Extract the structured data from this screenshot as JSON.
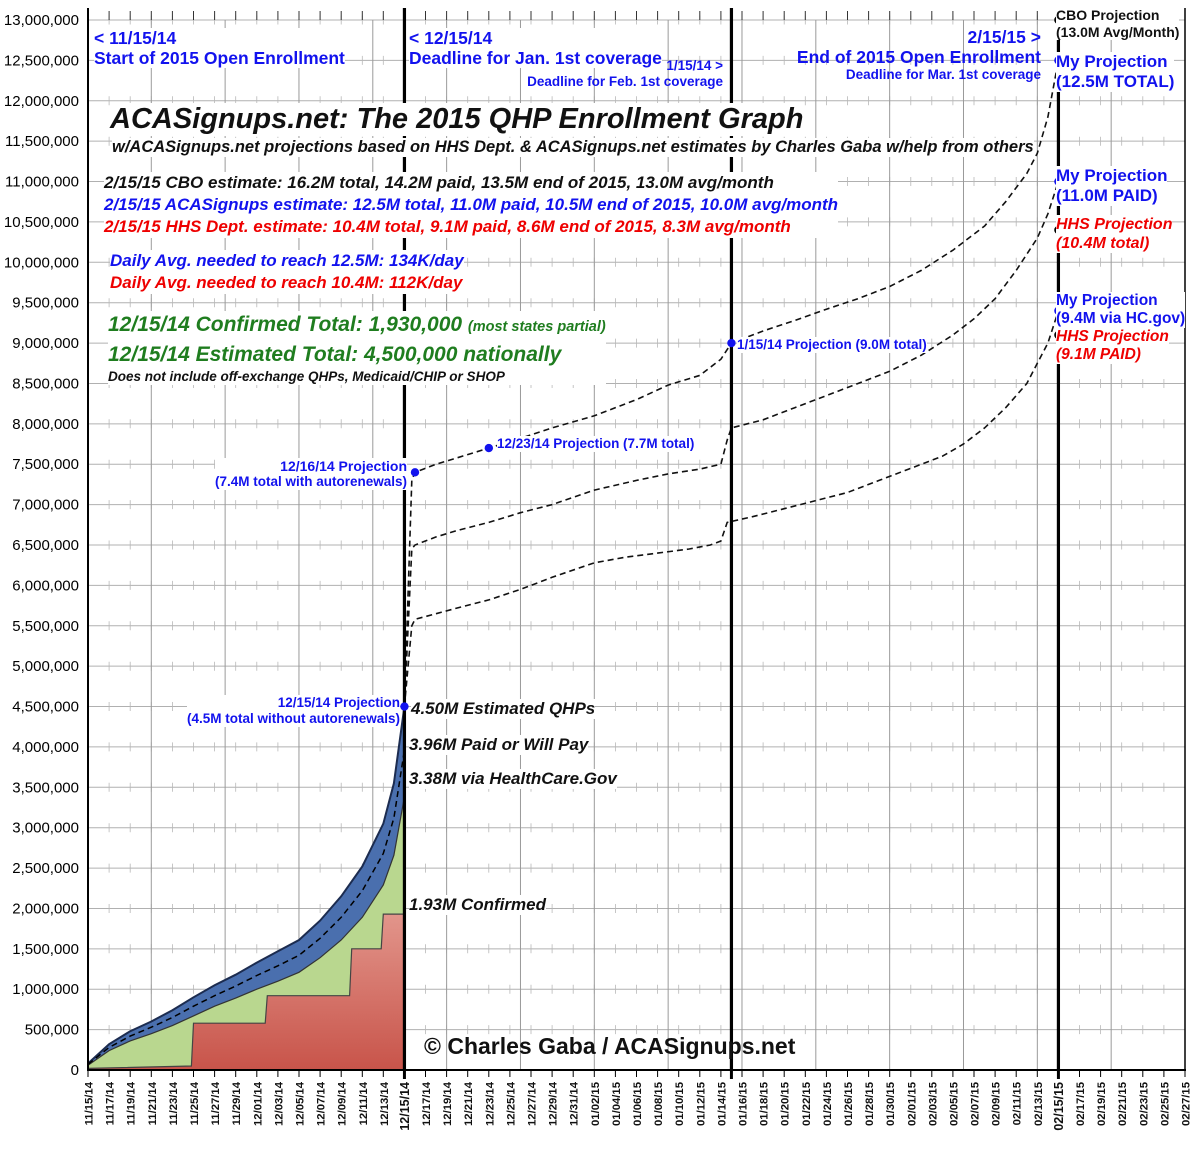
{
  "header": {
    "left": {
      "line1": "< 11/15/14",
      "line2": "Start of 2015 Open Enrollment"
    },
    "mid": {
      "line1": "< 12/15/14",
      "line2": "Deadline for Jan. 1st coverage"
    },
    "jan15": {
      "line1": "1/15/14 >",
      "line2": "Deadline for Feb. 1st coverage"
    },
    "right": {
      "line1": "2/15/15 >",
      "line2": "End of 2015 Open Enrollment",
      "line3": "Deadline for Mar. 1st coverage"
    }
  },
  "title": "ACASignups.net: The 2015 QHP Enrollment Graph",
  "subtitle": "w/ACASignups.net projections based on HHS Dept. & ACASignups.net estimates by Charles Gaba w/help from others",
  "estimates": {
    "cbo": "2/15/15 CBO estimate: 16.2M total, 14.2M paid, 13.5M end of 2015, 13.0M avg/month",
    "aca": "2/15/15 ACASignups estimate: 12.5M total, 11.0M paid, 10.5M end of 2015, 10.0M avg/month",
    "hhs": "2/15/15 HHS Dept. estimate: 10.4M total, 9.1M paid, 8.6M end of 2015, 8.3M avg/month"
  },
  "daily_avg": {
    "blue": "Daily Avg. needed to reach 12.5M: 134K/day",
    "red": "Daily Avg. needed to reach 10.4M: 112K/day"
  },
  "totals": {
    "confirmed": "12/15/14 Confirmed Total: 1,930,000",
    "confirmed_note": "(most states partial)",
    "estimated": "12/15/14 Estimated Total: 4,500,000 nationally",
    "disclaimer": "Does not include off-exchange QHPs, Medicaid/CHIP or SHOP"
  },
  "callouts": {
    "p1215": {
      "line1": "12/15/14 Projection",
      "line2": "(4.5M total without autorenewals)"
    },
    "p1216": {
      "line1": "12/16/14 Projection",
      "line2": "(7.4M total with autorenewals)"
    },
    "p1223": "12/23/14 Projection (7.7M total)",
    "p0115": "1/15/14 Projection (9.0M total)"
  },
  "area_labels": {
    "estimated": "4.50M Estimated QHPs",
    "paid": "3.96M Paid or Will Pay",
    "hcgov": "3.38M via HealthCare.Gov",
    "confirmed": "1.93M Confirmed"
  },
  "right_labels": [
    {
      "line1": "CBO Projection",
      "line2": "(13.0M Avg/Month)"
    },
    {
      "line1": "My Projection",
      "line2": "(12.5M TOTAL)"
    },
    {
      "line1": "My Projection",
      "line2": "(11.0M PAID)"
    },
    {
      "line1": "HHS Projection",
      "line2": "(10.4M total)"
    },
    {
      "line1": "My Projection",
      "line2": "(9.4M via HC.gov)"
    },
    {
      "line1": "HHS Projection",
      "line2": "(9.1M PAID)"
    }
  ],
  "copyright": "© Charles Gaba / ACASignups.net",
  "colors": {
    "blue_text": "#1212ee",
    "red_text": "#ee0000",
    "green_text": "#1f7d1f",
    "area_blue": "#4a6fae",
    "area_blue_edge": "#1c2c50",
    "area_green": "#b9d78f",
    "area_green_edge": "#333333",
    "area_red_top": "#e2958b",
    "area_red_bottom": "#c8544a",
    "area_red_edge": "#444444",
    "grid": "#b0b0b0",
    "grid_tick": "#b8b8b8",
    "weekly_grid": "#9a9a9a",
    "axis": "#000000",
    "proj_line": "#111111",
    "dot_blue": "#1212ee",
    "dot_black": "#000000"
  },
  "chart_data": {
    "type": "area",
    "title": "ACASignups.net: The 2015 QHP Enrollment Graph",
    "ylim": [
      0,
      13000000
    ],
    "y_tick_step": 500000,
    "x_tick_interval_days": 2,
    "x_tick_labels": [
      "11/15/14",
      "11/17/14",
      "11/19/14",
      "11/21/14",
      "11/23/14",
      "11/25/14",
      "11/27/14",
      "11/29/14",
      "12/01/14",
      "12/03/14",
      "12/05/14",
      "12/07/14",
      "12/09/14",
      "12/11/14",
      "12/13/14",
      "12/15/14",
      "12/17/14",
      "12/19/14",
      "12/21/14",
      "12/23/14",
      "12/25/14",
      "12/27/14",
      "12/29/14",
      "12/31/14",
      "01/02/15",
      "01/04/15",
      "01/06/15",
      "01/08/15",
      "01/10/15",
      "01/12/15",
      "01/14/15",
      "01/16/15",
      "01/18/15",
      "01/20/15",
      "01/22/15",
      "01/24/15",
      "01/26/15",
      "01/28/15",
      "01/30/15",
      "02/01/15",
      "02/03/15",
      "02/05/15",
      "02/07/15",
      "02/09/15",
      "02/11/15",
      "02/13/15",
      "02/15/15",
      "02/17/15",
      "02/19/15",
      "02/21/15",
      "02/23/15",
      "02/25/15",
      "02/27/15"
    ],
    "deadline_days": [
      30,
      61,
      92
    ],
    "units": "millions",
    "series": {
      "total": {
        "label": "Estimated QHPs (4.50M at 12/15)",
        "points": [
          [
            0,
            0.08
          ],
          [
            2,
            0.32
          ],
          [
            4,
            0.48
          ],
          [
            6,
            0.6
          ],
          [
            8,
            0.74
          ],
          [
            10,
            0.9
          ],
          [
            12,
            1.05
          ],
          [
            14,
            1.18
          ],
          [
            16,
            1.33
          ],
          [
            18,
            1.47
          ],
          [
            20,
            1.61
          ],
          [
            22,
            1.85
          ],
          [
            24,
            2.15
          ],
          [
            26,
            2.52
          ],
          [
            28,
            3.05
          ],
          [
            29,
            3.55
          ],
          [
            30,
            4.5
          ]
        ]
      },
      "hcgov": {
        "label": "via HealthCare.Gov (3.38M at 12/15)",
        "points": [
          [
            0,
            0.06
          ],
          [
            2,
            0.24
          ],
          [
            4,
            0.36
          ],
          [
            6,
            0.45
          ],
          [
            8,
            0.55
          ],
          [
            10,
            0.67
          ],
          [
            12,
            0.79
          ],
          [
            14,
            0.89
          ],
          [
            16,
            1.0
          ],
          [
            18,
            1.1
          ],
          [
            20,
            1.21
          ],
          [
            22,
            1.39
          ],
          [
            24,
            1.61
          ],
          [
            26,
            1.89
          ],
          [
            28,
            2.29
          ],
          [
            29,
            2.66
          ],
          [
            30,
            3.38
          ]
        ]
      },
      "confirmed": {
        "label": "Confirmed (1.93M at 12/15)",
        "points": [
          [
            0,
            0.02
          ],
          [
            9.8,
            0.05
          ],
          [
            10,
            0.58
          ],
          [
            16.8,
            0.58
          ],
          [
            17,
            0.92
          ],
          [
            24.8,
            0.92
          ],
          [
            25,
            1.5
          ],
          [
            27.8,
            1.5
          ],
          [
            28,
            1.93
          ],
          [
            30,
            1.93
          ]
        ]
      },
      "paid": {
        "label": "Paid or Will Pay (3.96M at 12/15)",
        "points": [
          [
            0,
            0.07
          ],
          [
            2,
            0.28
          ],
          [
            4,
            0.42
          ],
          [
            6,
            0.53
          ],
          [
            8,
            0.65
          ],
          [
            10,
            0.79
          ],
          [
            12,
            0.92
          ],
          [
            14,
            1.04
          ],
          [
            16,
            1.17
          ],
          [
            18,
            1.29
          ],
          [
            20,
            1.42
          ],
          [
            22,
            1.63
          ],
          [
            24,
            1.89
          ],
          [
            26,
            2.22
          ],
          [
            28,
            2.68
          ],
          [
            29,
            3.12
          ],
          [
            30,
            3.96
          ]
        ]
      }
    },
    "projections": [
      {
        "name": "total-projection",
        "end_value": 12.5,
        "points": [
          [
            30,
            4.5
          ],
          [
            30.7,
            7.3
          ],
          [
            31,
            7.4
          ],
          [
            33,
            7.5
          ],
          [
            35,
            7.58
          ],
          [
            38,
            7.7
          ],
          [
            41,
            7.82
          ],
          [
            44,
            7.95
          ],
          [
            48,
            8.1
          ],
          [
            52,
            8.3
          ],
          [
            55,
            8.48
          ],
          [
            58,
            8.6
          ],
          [
            60,
            8.8
          ],
          [
            61,
            9.0
          ],
          [
            64,
            9.15
          ],
          [
            67,
            9.28
          ],
          [
            70,
            9.42
          ],
          [
            73,
            9.55
          ],
          [
            76,
            9.7
          ],
          [
            79,
            9.9
          ],
          [
            82,
            10.15
          ],
          [
            85,
            10.45
          ],
          [
            87,
            10.75
          ],
          [
            89,
            11.1
          ],
          [
            90,
            11.35
          ],
          [
            91,
            11.8
          ],
          [
            92,
            12.5
          ]
        ]
      },
      {
        "name": "paid-projection",
        "end_value": 11.0,
        "points": [
          [
            30,
            4.5
          ],
          [
            30.7,
            6.45
          ],
          [
            31,
            6.5
          ],
          [
            33,
            6.6
          ],
          [
            35,
            6.68
          ],
          [
            38,
            6.78
          ],
          [
            41,
            6.9
          ],
          [
            44,
            7.0
          ],
          [
            48,
            7.18
          ],
          [
            52,
            7.3
          ],
          [
            55,
            7.38
          ],
          [
            58,
            7.44
          ],
          [
            60,
            7.5
          ],
          [
            60.6,
            7.8
          ],
          [
            61,
            7.95
          ],
          [
            64,
            8.05
          ],
          [
            67,
            8.2
          ],
          [
            70,
            8.35
          ],
          [
            73,
            8.5
          ],
          [
            76,
            8.65
          ],
          [
            79,
            8.85
          ],
          [
            82,
            9.1
          ],
          [
            84,
            9.3
          ],
          [
            86,
            9.55
          ],
          [
            88,
            9.9
          ],
          [
            90,
            10.3
          ],
          [
            91,
            10.6
          ],
          [
            92,
            11.0
          ]
        ]
      },
      {
        "name": "hcgov-projection",
        "end_value": 9.4,
        "points": [
          [
            30,
            4.5
          ],
          [
            30.7,
            5.5
          ],
          [
            31,
            5.58
          ],
          [
            33,
            5.65
          ],
          [
            35,
            5.72
          ],
          [
            38,
            5.82
          ],
          [
            41,
            5.95
          ],
          [
            44,
            6.1
          ],
          [
            48,
            6.28
          ],
          [
            51,
            6.35
          ],
          [
            54,
            6.4
          ],
          [
            57,
            6.45
          ],
          [
            59,
            6.5
          ],
          [
            60,
            6.55
          ],
          [
            60.6,
            6.78
          ],
          [
            63,
            6.85
          ],
          [
            66,
            6.95
          ],
          [
            69,
            7.05
          ],
          [
            72,
            7.15
          ],
          [
            75,
            7.3
          ],
          [
            78,
            7.45
          ],
          [
            81,
            7.6
          ],
          [
            83,
            7.75
          ],
          [
            85,
            7.95
          ],
          [
            87,
            8.2
          ],
          [
            89,
            8.5
          ],
          [
            90,
            8.75
          ],
          [
            91,
            9.0
          ],
          [
            92,
            9.4
          ]
        ]
      }
    ],
    "markers": {
      "blue": [
        [
          30,
          4.5
        ],
        [
          31,
          7.4
        ],
        [
          38,
          7.7
        ],
        [
          61,
          9.0
        ],
        [
          92,
          12.5
        ],
        [
          92,
          11.0
        ],
        [
          92,
          9.4
        ]
      ],
      "black": [
        [
          92,
          13.0
        ],
        [
          92,
          10.4
        ],
        [
          92,
          9.1
        ]
      ]
    }
  }
}
